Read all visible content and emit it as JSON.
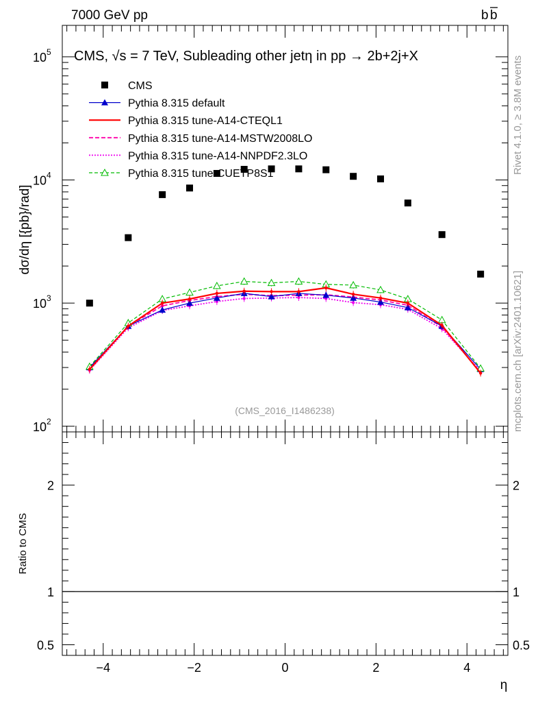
{
  "header": {
    "left": "7000 GeV pp",
    "right_main": "b",
    "right_bar": "b"
  },
  "side_labels": {
    "rivet": "Rivet 4.1.0, ≥ 3.8M events",
    "mcplots": "mcplots.cern.ch [arXiv:2401.10621]"
  },
  "colors": {
    "cms": "#000000",
    "default": "#0000cc",
    "cteql1": "#ff0000",
    "mstw": "#ff00aa",
    "nnpdf": "#ee00ee",
    "cuetp8s1": "#00bb00",
    "grey_text": "#999999"
  },
  "chart_data": [
    {
      "id": "main",
      "type": "scatter",
      "title": "CMS, √s = 7 TeV, Subleading other jetη in pp →  2b+2j+X",
      "ylabel": "dσ/dη [{pb}/rad]",
      "xlabel": "",
      "yscale": "log",
      "xlim": [
        -4.9,
        4.9
      ],
      "ylim": [
        90,
        180000
      ],
      "ytick_labels": [
        {
          "value": 100,
          "base": "10",
          "exp": "2"
        },
        {
          "value": 1000,
          "base": "10",
          "exp": "3"
        },
        {
          "value": 10000,
          "base": "10",
          "exp": "4"
        },
        {
          "value": 100000,
          "base": "10",
          "exp": "5"
        }
      ],
      "watermark": "(CMS_2016_I1486238)",
      "x": [
        -4.3,
        -3.45,
        -2.7,
        -2.1,
        -1.5,
        -0.9,
        -0.3,
        0.3,
        0.9,
        1.5,
        2.1,
        2.7,
        3.45,
        4.3
      ],
      "series": [
        {
          "name": "CMS",
          "key": "cms",
          "style": "square",
          "values": [
            1000,
            3400,
            7600,
            8600,
            11300,
            12200,
            12300,
            12300,
            12100,
            10700,
            10200,
            6500,
            3600,
            1720
          ]
        },
        {
          "name": "Pythia 8.315 default",
          "key": "default",
          "style": "solid-thin-triangle",
          "values": [
            300,
            650,
            880,
            1000,
            1100,
            1200,
            1130,
            1200,
            1160,
            1100,
            1020,
            920,
            650,
            290
          ]
        },
        {
          "name": "Pythia 8.315 tune-A14-CTEQL1",
          "key": "cteql1",
          "style": "solid-thick",
          "values": [
            290,
            650,
            1000,
            1080,
            1200,
            1250,
            1240,
            1240,
            1330,
            1180,
            1100,
            1000,
            660,
            270
          ]
        },
        {
          "name": "Pythia 8.315 tune-A14-MSTW2008LO",
          "key": "mstw",
          "style": "dashed",
          "values": [
            290,
            650,
            950,
            1050,
            1130,
            1180,
            1150,
            1160,
            1170,
            1120,
            1060,
            960,
            640,
            275
          ]
        },
        {
          "name": "Pythia 8.315 tune-A14-NNPDF2.3LO",
          "key": "nnpdf",
          "style": "dotted",
          "values": [
            285,
            630,
            870,
            950,
            1030,
            1090,
            1100,
            1110,
            1090,
            1010,
            970,
            890,
            620,
            280
          ]
        },
        {
          "name": "Pythia 8.315 tune-CUETP8S1",
          "key": "cuetp8s1",
          "style": "dashed-open-triangle",
          "values": [
            305,
            690,
            1080,
            1220,
            1380,
            1500,
            1460,
            1500,
            1420,
            1400,
            1280,
            1080,
            730,
            295
          ]
        }
      ]
    },
    {
      "id": "ratio",
      "type": "line",
      "ylabel": "Ratio to CMS",
      "xlabel": "η",
      "xlim": [
        -4.9,
        4.9
      ],
      "ylim": [
        0.4,
        2.5
      ],
      "x_ticks": [
        -4,
        -2,
        0,
        2,
        4
      ],
      "x_tick_labels": [
        "−4",
        "−2",
        "0",
        "2",
        "4"
      ],
      "y_ticks": [
        0.5,
        1,
        2
      ],
      "y_tick_labels": [
        "0.5",
        "1",
        "2"
      ],
      "reference": 1
    }
  ]
}
